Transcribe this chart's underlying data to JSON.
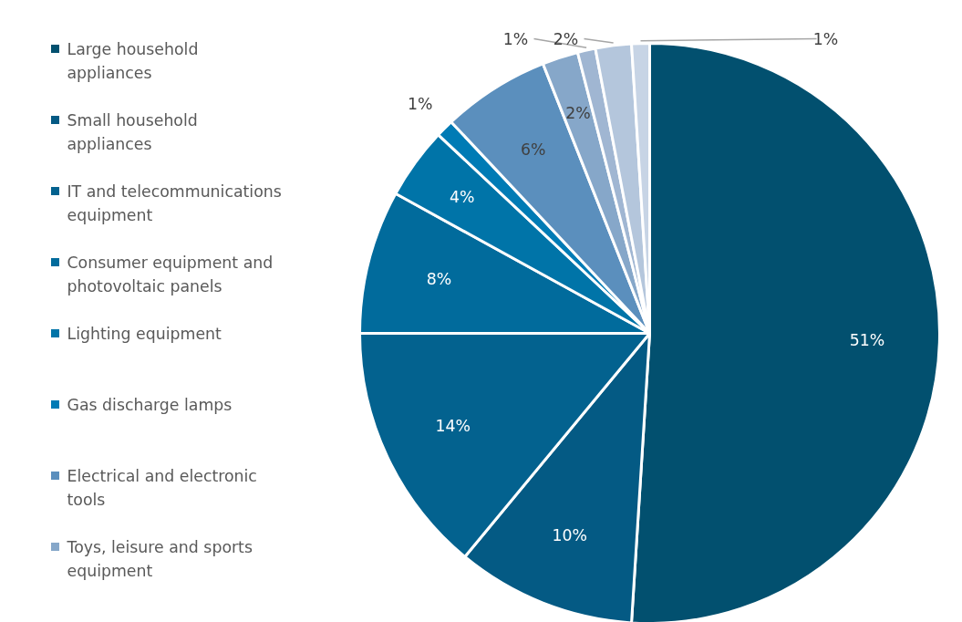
{
  "chart_data": {
    "type": "pie",
    "categories": [
      "Large household appliances",
      "Small household appliances",
      "IT and telecommunications equipment",
      "Consumer equipment and photovoltaic panels",
      "Lighting equipment",
      "Gas discharge lamps",
      "Electrical and electronic tools",
      "Toys, leisure and sports equipment",
      null,
      null,
      null
    ],
    "values": [
      51,
      10,
      14,
      8,
      4,
      1,
      6,
      2,
      1,
      2,
      1
    ],
    "colors": [
      "#02506f",
      "#045a84",
      "#03628f",
      "#016b9c",
      "#0074a8",
      "#007bb5",
      "#5b8fbd",
      "#86a7c9",
      "#a0b6d2",
      "#b4c6dc",
      "#c7d4e5"
    ],
    "value_labels": [
      "51%",
      "10%",
      "14%",
      "8%",
      "4%",
      "1%",
      "6%",
      "2%",
      "1%",
      "2%",
      "1%"
    ],
    "legend": "left"
  }
}
